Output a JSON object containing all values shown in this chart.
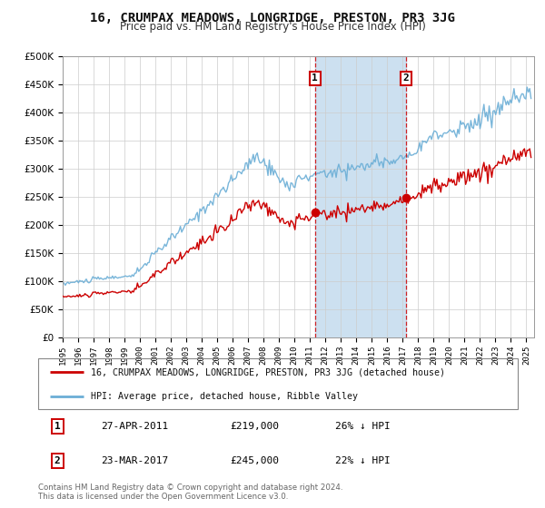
{
  "title": "16, CRUMPAX MEADOWS, LONGRIDGE, PRESTON, PR3 3JG",
  "subtitle": "Price paid vs. HM Land Registry's House Price Index (HPI)",
  "legend_line1": "16, CRUMPAX MEADOWS, LONGRIDGE, PRESTON, PR3 3JG (detached house)",
  "legend_line2": "HPI: Average price, detached house, Ribble Valley",
  "transaction1_date": "27-APR-2011",
  "transaction1_price": "£219,000",
  "transaction1_hpi": "26% ↓ HPI",
  "transaction1_year": 2011.32,
  "transaction1_value": 219000,
  "transaction2_date": "23-MAR-2017",
  "transaction2_price": "£245,000",
  "transaction2_hpi": "22% ↓ HPI",
  "transaction2_year": 2017.22,
  "transaction2_value": 245000,
  "shade_color": "#cce0f0",
  "line1_color": "#cc0000",
  "line2_color": "#6baed6",
  "vline_color": "#cc0000",
  "background_color": "#ffffff",
  "grid_color": "#cccccc",
  "ylim": [
    0,
    500000
  ],
  "xlim_start": 1995.0,
  "xlim_end": 2025.5,
  "footnote_line1": "Contains HM Land Registry data © Crown copyright and database right 2024.",
  "footnote_line2": "This data is licensed under the Open Government Licence v3.0."
}
